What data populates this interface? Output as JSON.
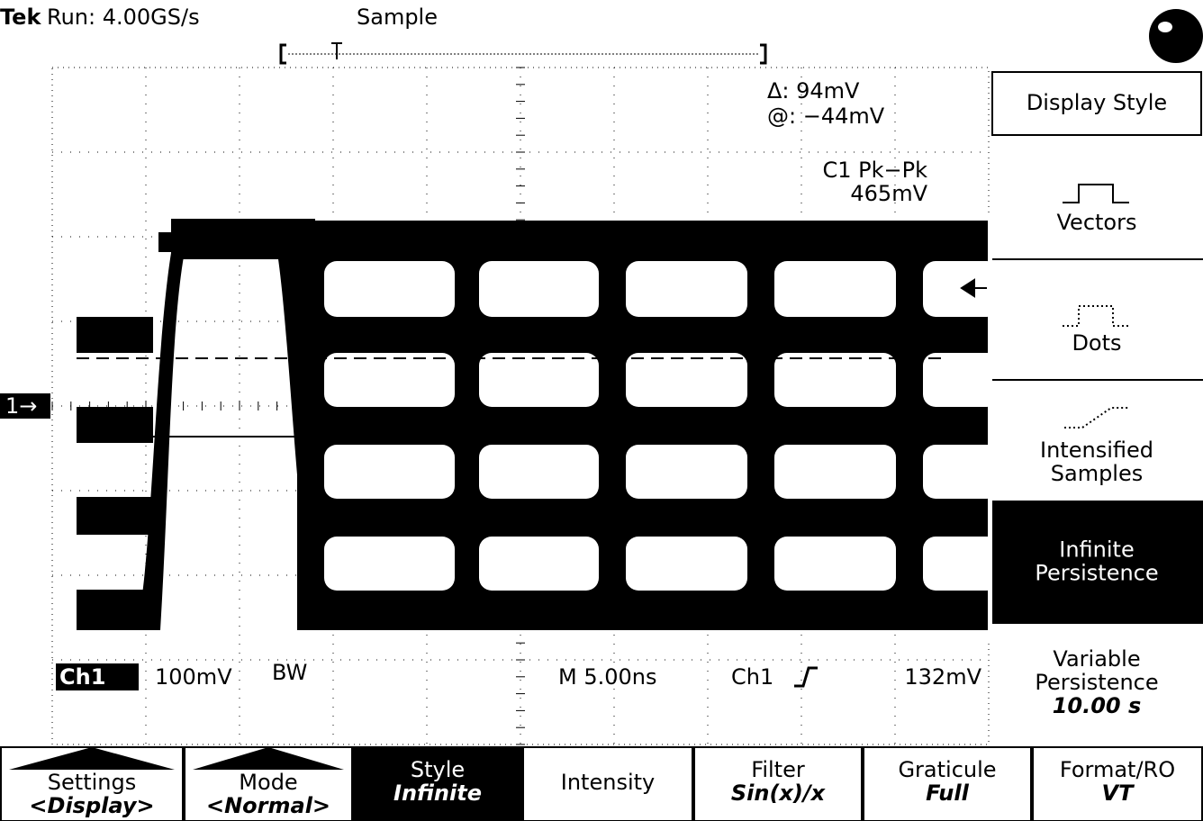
{
  "header": {
    "brand": "Tek",
    "status": "Run: 4.00GS/s",
    "acquire_mode": "Sample"
  },
  "readouts": {
    "delta": "Δ: 94mV",
    "at": "@: −44mV",
    "measurement_name": "C1 Pk−Pk",
    "measurement_value": "465mV"
  },
  "channel": {
    "marker": "1→",
    "label": "Ch1",
    "scale": "100mV",
    "bandwidth": "BW"
  },
  "timebase": {
    "horizontal": "M 5.00ns",
    "trigger_source": "Ch1",
    "trigger_level": "132mV"
  },
  "side_menu": {
    "title": "Display Style",
    "items": [
      {
        "lines": [
          "Vectors"
        ]
      },
      {
        "lines": [
          "Dots"
        ]
      },
      {
        "lines": [
          "Intensified",
          "Samples"
        ]
      },
      {
        "lines": [
          "Infinite",
          "Persistence"
        ],
        "selected": true
      },
      {
        "lines": [
          "Variable",
          "Persistence"
        ],
        "value": "10.00 s"
      }
    ]
  },
  "bottom_menu": [
    {
      "label": "Settings",
      "value": "<Display>"
    },
    {
      "label": "Mode",
      "value": "<Normal>"
    },
    {
      "label": "Style",
      "value": "Infinite",
      "selected": true
    },
    {
      "label": "Intensity"
    },
    {
      "label": "Filter",
      "value": "Sin(x)/x"
    },
    {
      "label": "Graticule",
      "value": "Full"
    },
    {
      "label": "Format/RO",
      "value": "VT"
    }
  ]
}
